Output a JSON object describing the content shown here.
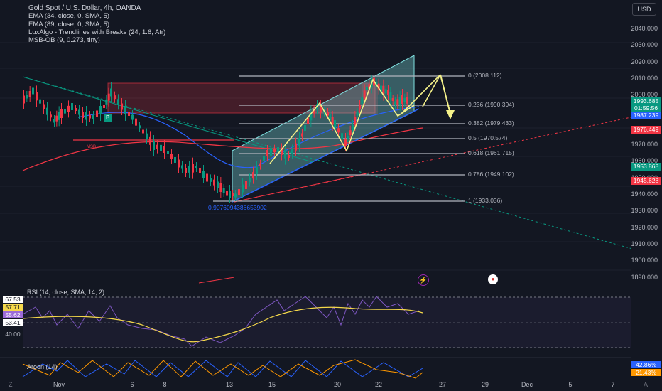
{
  "header": {
    "symbol_title": "Gold Spot / U.S. Dollar, 4h, OANDA",
    "currency_button": "USD"
  },
  "indicators": [
    "EMA (34, close, 0, SMA, 5)",
    "EMA (89, close, 0, SMA, 5)",
    "LuxAlgo - Trendlines with Breaks (24, 1.6, Atr)",
    "MSB-OB (9, 0.273, tiny)"
  ],
  "price_axis": {
    "labels": [
      "2040.000",
      "2030.000",
      "2020.000",
      "2010.000",
      "2000.000",
      "1970.000",
      "1960.000",
      "1950.000",
      "1940.000",
      "1930.000",
      "1920.000",
      "1910.000",
      "1900.000",
      "1890.000"
    ],
    "badges": [
      {
        "text": "1993.685",
        "color": "#089981"
      },
      {
        "text": "01:59:56",
        "color": "#089981"
      },
      {
        "text": "1987.239",
        "color": "#2962ff"
      },
      {
        "text": "1976.449",
        "color": "#f23645"
      },
      {
        "text": "1953.868",
        "color": "#089981"
      },
      {
        "text": "1945.628",
        "color": "#f23645"
      }
    ]
  },
  "time_axis": {
    "labels": [
      "Nov",
      "6",
      "8",
      "13",
      "15",
      "20",
      "22",
      "27",
      "29",
      "Dec",
      "5",
      "7"
    ]
  },
  "fibonacci": [
    {
      "label": "0 (2008.112)"
    },
    {
      "label": "0.236 (1990.394)"
    },
    {
      "label": "0.382 (1979.433)"
    },
    {
      "label": "0.5 (1970.574)"
    },
    {
      "label": "0.618 (1961.715)"
    },
    {
      "label": "0.786 (1949.102)"
    },
    {
      "label": "1 (1933.036)"
    }
  ],
  "chart_annotations": {
    "channel_value": "0.9076094386653902",
    "msb_label": "MSB",
    "buy_marker": "B"
  },
  "rsi": {
    "legend": "RSI (14, close, SMA, 14, 2)",
    "badges": [
      {
        "text": "67.53",
        "color": "#ffffff"
      },
      {
        "text": "57.71",
        "color": "#f5d84a"
      },
      {
        "text": "55.62",
        "color": "#9c6ad8"
      },
      {
        "text": "53.41",
        "color": "#ffffff"
      },
      {
        "text": "40.00",
        "color": "transparent"
      }
    ]
  },
  "aroon": {
    "legend": "Aroon (14)",
    "badges": [
      {
        "text": "42.86%",
        "color": "#2962ff"
      },
      {
        "text": "21.43%",
        "color": "#ff9800"
      }
    ]
  },
  "corner": {
    "left": "Z",
    "right": "A"
  },
  "colors": {
    "background": "#131722",
    "up": "#089981",
    "down": "#f23645",
    "fib_line": "#b2b5be",
    "channel": "#7fe0e0",
    "projection": "#f5f28a"
  },
  "chart_data": {
    "type": "candlestick",
    "title": "Gold Spot / U.S. Dollar, 4h, OANDA",
    "ylim": [
      1885,
      2048
    ],
    "fib_levels": [
      2008.112,
      1990.394,
      1979.433,
      1970.574,
      1961.715,
      1949.102,
      1933.036
    ],
    "last_price": 1993.685
  }
}
